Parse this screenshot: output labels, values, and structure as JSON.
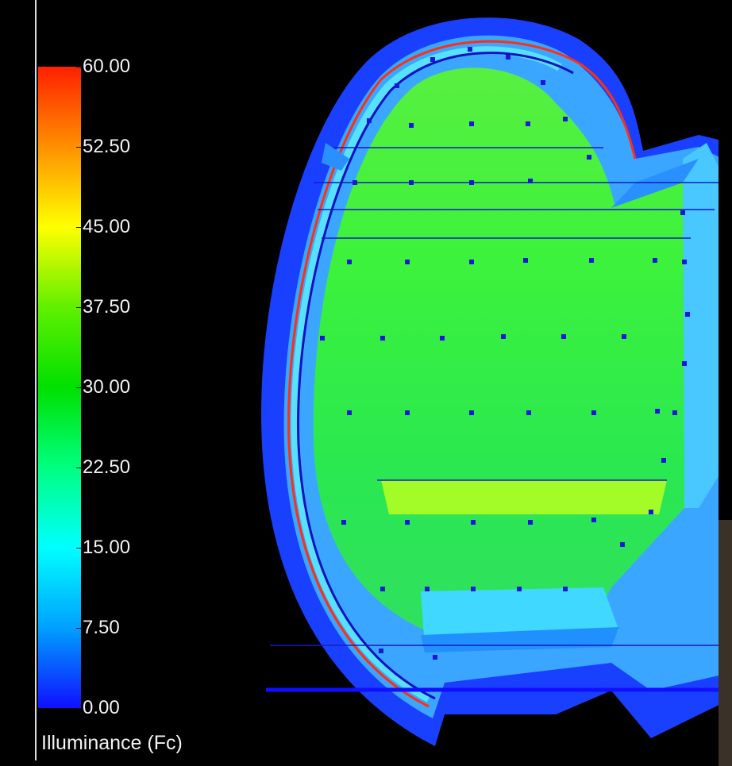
{
  "legend": {
    "title": "Illuminance (Fc)",
    "min": 0,
    "max": 60,
    "colors": [
      "#1010ff",
      "#00a0ff",
      "#00ffff",
      "#00ff80",
      "#00e000",
      "#60f000",
      "#ffff00",
      "#ff9000",
      "#ff2000"
    ],
    "ticks": [
      {
        "label": "60.00",
        "value": 60
      },
      {
        "label": "52.50",
        "value": 52.5
      },
      {
        "label": "45.00",
        "value": 45
      },
      {
        "label": "37.50",
        "value": 37.5
      },
      {
        "label": "30.00",
        "value": 30
      },
      {
        "label": "22.50",
        "value": 22.5
      },
      {
        "label": "15.00",
        "value": 15
      },
      {
        "label": "7.50",
        "value": 7.5
      },
      {
        "label": "0.00",
        "value": 0
      }
    ]
  },
  "scene": {
    "colors": {
      "background": "#000000",
      "outer_shell": "#1e3cff",
      "inner_shell": "#38a8ff",
      "floor": "#3cff3c",
      "fixture": "#1818d8",
      "accent_red": "#ff3010",
      "accent_yellow": "#e6ff20"
    }
  }
}
